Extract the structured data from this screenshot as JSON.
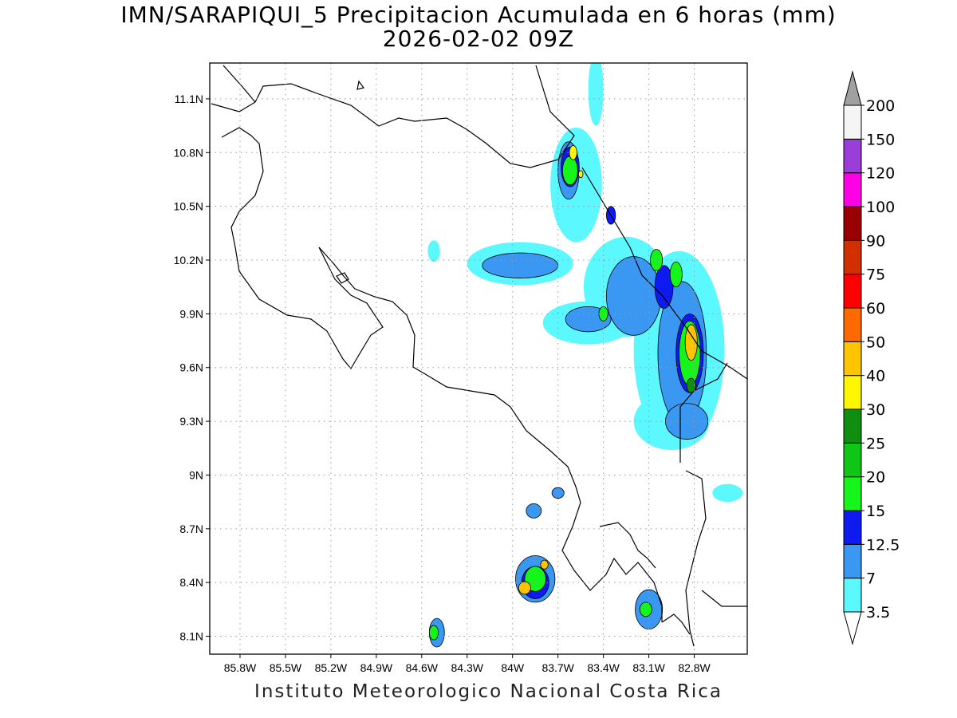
{
  "title": "IMN/SARAPIQUI_5 Precipitacion Acumulada en 6 horas (mm)",
  "subtitle": "2026-02-02 09Z",
  "credit": "Instituto Meteorologico Nacional Costa Rica",
  "map": {
    "lon_range": [
      -86.0,
      -82.45
    ],
    "lat_range": [
      8.0,
      11.3
    ],
    "lon_ticks": [
      {
        "value": -85.8,
        "label": "85.8W"
      },
      {
        "value": -85.5,
        "label": "85.5W"
      },
      {
        "value": -85.2,
        "label": "85.2W"
      },
      {
        "value": -84.9,
        "label": "84.9W"
      },
      {
        "value": -84.6,
        "label": "84.6W"
      },
      {
        "value": -84.3,
        "label": "84.3W"
      },
      {
        "value": -84.0,
        "label": "84W"
      },
      {
        "value": -83.7,
        "label": "83.7W"
      },
      {
        "value": -83.4,
        "label": "83.4W"
      },
      {
        "value": -83.1,
        "label": "83.1W"
      },
      {
        "value": -82.8,
        "label": "82.8W"
      }
    ],
    "lat_ticks": [
      {
        "value": 8.1,
        "label": "8.1N"
      },
      {
        "value": 8.4,
        "label": "8.4N"
      },
      {
        "value": 8.7,
        "label": "8.7N"
      },
      {
        "value": 9.0,
        "label": "9N"
      },
      {
        "value": 9.3,
        "label": "9.3N"
      },
      {
        "value": 9.6,
        "label": "9.6N"
      },
      {
        "value": 9.9,
        "label": "9.9N"
      },
      {
        "value": 10.2,
        "label": "10.2N"
      },
      {
        "value": 10.5,
        "label": "10.5N"
      },
      {
        "value": 10.8,
        "label": "10.8N"
      },
      {
        "value": 11.1,
        "label": "11.1N"
      }
    ],
    "grid": true
  },
  "legend": {
    "unit": "mm",
    "levels": [
      {
        "label": "3.5",
        "color": "#5bf9ff"
      },
      {
        "label": "7",
        "color": "#3a98f2"
      },
      {
        "label": "12.5",
        "color": "#0d1bf0"
      },
      {
        "label": "15",
        "color": "#15f51c"
      },
      {
        "label": "20",
        "color": "#0fc515"
      },
      {
        "label": "25",
        "color": "#0f8e10"
      },
      {
        "label": "30",
        "color": "#fff700"
      },
      {
        "label": "40",
        "color": "#ffc400"
      },
      {
        "label": "50",
        "color": "#ff6a00"
      },
      {
        "label": "60",
        "color": "#ff0000"
      },
      {
        "label": "75",
        "color": "#d03000"
      },
      {
        "label": "90",
        "color": "#990000"
      },
      {
        "label": "100",
        "color": "#ff00e6"
      },
      {
        "label": "120",
        "color": "#9b3dd8"
      },
      {
        "label": "150",
        "color": "#f5f5f5"
      },
      {
        "label": "200",
        "color": "#a0a0a0"
      }
    ],
    "extend": "both"
  },
  "precip_cells": [
    {
      "lon": -83.58,
      "lat": 10.62,
      "rlon": 0.17,
      "rlat": 0.32,
      "level": 0
    },
    {
      "lon": -83.45,
      "lat": 11.15,
      "rlon": 0.05,
      "rlat": 0.2,
      "level": 0
    },
    {
      "lon": -83.95,
      "lat": 10.18,
      "rlon": 0.35,
      "rlat": 0.12,
      "level": 0
    },
    {
      "lon": -83.25,
      "lat": 10.05,
      "rlon": 0.28,
      "rlat": 0.28,
      "level": 0
    },
    {
      "lon": -83.5,
      "lat": 9.85,
      "rlon": 0.3,
      "rlat": 0.12,
      "level": 0
    },
    {
      "lon": -82.9,
      "lat": 9.7,
      "rlon": 0.3,
      "rlat": 0.55,
      "level": 0
    },
    {
      "lon": -82.95,
      "lat": 9.3,
      "rlon": 0.25,
      "rlat": 0.16,
      "level": 0
    },
    {
      "lon": -84.52,
      "lat": 10.25,
      "rlon": 0.04,
      "rlat": 0.06,
      "level": 0
    },
    {
      "lon": -82.58,
      "lat": 8.9,
      "rlon": 0.1,
      "rlat": 0.05,
      "level": 0
    },
    {
      "lon": -83.63,
      "lat": 10.7,
      "rlon": 0.07,
      "rlat": 0.16,
      "level": 1
    },
    {
      "lon": -83.95,
      "lat": 10.17,
      "rlon": 0.25,
      "rlat": 0.07,
      "level": 1
    },
    {
      "lon": -83.2,
      "lat": 10.0,
      "rlon": 0.18,
      "rlat": 0.22,
      "level": 1
    },
    {
      "lon": -82.88,
      "lat": 9.68,
      "rlon": 0.16,
      "rlat": 0.4,
      "level": 1
    },
    {
      "lon": -83.5,
      "lat": 9.87,
      "rlon": 0.15,
      "rlat": 0.07,
      "level": 1
    },
    {
      "lon": -82.85,
      "lat": 9.3,
      "rlon": 0.14,
      "rlat": 0.1,
      "level": 1
    },
    {
      "lon": -84.5,
      "lat": 8.12,
      "rlon": 0.05,
      "rlat": 0.08,
      "level": 1
    },
    {
      "lon": -83.85,
      "lat": 8.42,
      "rlon": 0.13,
      "rlat": 0.13,
      "level": 1
    },
    {
      "lon": -83.1,
      "lat": 8.25,
      "rlon": 0.09,
      "rlat": 0.11,
      "level": 1
    },
    {
      "lon": -83.86,
      "lat": 8.8,
      "rlon": 0.05,
      "rlat": 0.04,
      "level": 1
    },
    {
      "lon": -83.7,
      "lat": 8.9,
      "rlon": 0.04,
      "rlat": 0.03,
      "level": 1
    },
    {
      "lon": -83.62,
      "lat": 10.72,
      "rlon": 0.06,
      "rlat": 0.11,
      "level": 2
    },
    {
      "lon": -83.35,
      "lat": 10.45,
      "rlon": 0.03,
      "rlat": 0.05,
      "level": 2
    },
    {
      "lon": -83.0,
      "lat": 10.05,
      "rlon": 0.06,
      "rlat": 0.12,
      "level": 2
    },
    {
      "lon": -82.83,
      "lat": 9.68,
      "rlon": 0.09,
      "rlat": 0.22,
      "level": 2
    },
    {
      "lon": -83.85,
      "lat": 8.4,
      "rlon": 0.09,
      "rlat": 0.09,
      "level": 2
    },
    {
      "lon": -83.62,
      "lat": 10.7,
      "rlon": 0.05,
      "rlat": 0.08,
      "level": 3
    },
    {
      "lon": -83.05,
      "lat": 10.2,
      "rlon": 0.04,
      "rlat": 0.06,
      "level": 3
    },
    {
      "lon": -82.92,
      "lat": 10.12,
      "rlon": 0.04,
      "rlat": 0.07,
      "level": 3
    },
    {
      "lon": -82.83,
      "lat": 9.68,
      "rlon": 0.07,
      "rlat": 0.18,
      "level": 3
    },
    {
      "lon": -83.4,
      "lat": 9.9,
      "rlon": 0.03,
      "rlat": 0.04,
      "level": 3
    },
    {
      "lon": -83.85,
      "lat": 8.42,
      "rlon": 0.07,
      "rlat": 0.07,
      "level": 3
    },
    {
      "lon": -84.52,
      "lat": 8.12,
      "rlon": 0.03,
      "rlat": 0.04,
      "level": 3
    },
    {
      "lon": -83.12,
      "lat": 8.25,
      "rlon": 0.04,
      "rlat": 0.04,
      "level": 3
    },
    {
      "lon": -82.82,
      "lat": 9.5,
      "rlon": 0.03,
      "rlat": 0.04,
      "level": 5
    },
    {
      "lon": -83.92,
      "lat": 8.37,
      "rlon": 0.04,
      "rlat": 0.035,
      "level": 7
    },
    {
      "lon": -82.82,
      "lat": 9.74,
      "rlon": 0.04,
      "rlat": 0.1,
      "level": 7
    },
    {
      "lon": -83.6,
      "lat": 10.8,
      "rlon": 0.025,
      "rlat": 0.04,
      "level": 6
    },
    {
      "lon": -83.55,
      "lat": 10.68,
      "rlon": 0.015,
      "rlat": 0.02,
      "level": 6
    },
    {
      "lon": -83.79,
      "lat": 8.5,
      "rlon": 0.025,
      "rlat": 0.025,
      "level": 7
    }
  ]
}
